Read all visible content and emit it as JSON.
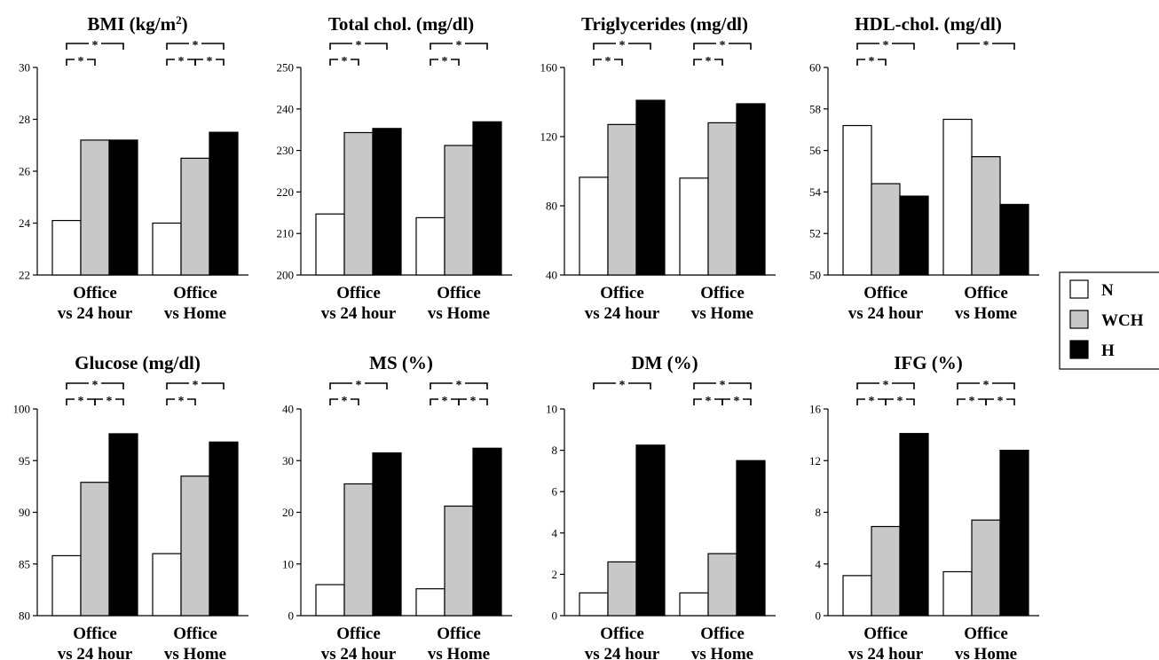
{
  "legend": {
    "position": "right",
    "items": [
      {
        "label": "N",
        "color": "#ffffff"
      },
      {
        "label": "WCH",
        "color": "#c8c8c8"
      },
      {
        "label": "H",
        "color": "#000000"
      }
    ]
  },
  "chart_data": [
    {
      "type": "bar",
      "title": "BMI (kg/m²)",
      "title_html": "BMI (kg/m<tspan baseline-shift='super' font-size='13'>2</tspan>)",
      "ylim": [
        22,
        30
      ],
      "yticks": [
        22,
        24,
        26,
        28,
        30
      ],
      "groups": [
        {
          "label": [
            "Office",
            "vs 24 hour"
          ],
          "values": [
            24.1,
            27.2,
            27.2
          ]
        },
        {
          "label": [
            "Office",
            "vs Home"
          ],
          "values": [
            24.0,
            26.5,
            27.5
          ]
        }
      ],
      "significance": [
        {
          "group": 0,
          "from": 0,
          "to": 2,
          "level": 2
        },
        {
          "group": 0,
          "from": 0,
          "to": 1,
          "level": 1
        },
        {
          "group": 1,
          "from": 0,
          "to": 2,
          "level": 2
        },
        {
          "group": 1,
          "from": 0,
          "to": 1,
          "level": 1
        },
        {
          "group": 1,
          "from": 1,
          "to": 2,
          "level": 1
        }
      ]
    },
    {
      "type": "bar",
      "title": "Total chol. (mg/dl)",
      "ylim": [
        200,
        250
      ],
      "yticks": [
        200,
        210,
        220,
        230,
        240,
        250
      ],
      "groups": [
        {
          "label": [
            "Office",
            "vs 24 hour"
          ],
          "values": [
            214.7,
            234.3,
            235.3
          ]
        },
        {
          "label": [
            "Office",
            "vs Home"
          ],
          "values": [
            213.8,
            231.2,
            236.9
          ]
        }
      ],
      "significance": [
        {
          "group": 0,
          "from": 0,
          "to": 2,
          "level": 2
        },
        {
          "group": 0,
          "from": 0,
          "to": 1,
          "level": 1
        },
        {
          "group": 1,
          "from": 0,
          "to": 2,
          "level": 2
        },
        {
          "group": 1,
          "from": 0,
          "to": 1,
          "level": 1
        }
      ]
    },
    {
      "type": "bar",
      "title": "Triglycerides (mg/dl)",
      "ylim": [
        40,
        160
      ],
      "yticks": [
        40,
        80,
        120,
        160
      ],
      "groups": [
        {
          "label": [
            "Office",
            "vs 24 hour"
          ],
          "values": [
            96.5,
            127.0,
            141.0
          ]
        },
        {
          "label": [
            "Office",
            "vs Home"
          ],
          "values": [
            96.0,
            128.0,
            139.0
          ]
        }
      ],
      "significance": [
        {
          "group": 0,
          "from": 0,
          "to": 2,
          "level": 2
        },
        {
          "group": 0,
          "from": 0,
          "to": 1,
          "level": 1
        },
        {
          "group": 1,
          "from": 0,
          "to": 2,
          "level": 2
        },
        {
          "group": 1,
          "from": 0,
          "to": 1,
          "level": 1
        }
      ]
    },
    {
      "type": "bar",
      "title": "HDL-chol. (mg/dl)",
      "ylim": [
        50,
        60
      ],
      "yticks": [
        50,
        52,
        54,
        56,
        58,
        60
      ],
      "groups": [
        {
          "label": [
            "Office",
            "vs 24 hour"
          ],
          "values": [
            57.2,
            54.4,
            53.8
          ]
        },
        {
          "label": [
            "Office",
            "vs Home"
          ],
          "values": [
            57.5,
            55.7,
            53.4
          ]
        }
      ],
      "significance": [
        {
          "group": 0,
          "from": 0,
          "to": 2,
          "level": 2
        },
        {
          "group": 0,
          "from": 0,
          "to": 1,
          "level": 1
        },
        {
          "group": 1,
          "from": 0,
          "to": 2,
          "level": 2
        }
      ]
    },
    {
      "type": "bar",
      "title": "Glucose (mg/dl)",
      "ylim": [
        80,
        100
      ],
      "yticks": [
        80,
        85,
        90,
        95,
        100
      ],
      "groups": [
        {
          "label": [
            "Office",
            "vs 24 hour"
          ],
          "values": [
            85.8,
            92.9,
            97.6
          ]
        },
        {
          "label": [
            "Office",
            "vs Home"
          ],
          "values": [
            86.0,
            93.5,
            96.8
          ]
        }
      ],
      "significance": [
        {
          "group": 0,
          "from": 0,
          "to": 2,
          "level": 2
        },
        {
          "group": 0,
          "from": 0,
          "to": 1,
          "level": 1
        },
        {
          "group": 0,
          "from": 1,
          "to": 2,
          "level": 1
        },
        {
          "group": 1,
          "from": 0,
          "to": 2,
          "level": 2
        },
        {
          "group": 1,
          "from": 0,
          "to": 1,
          "level": 1
        }
      ]
    },
    {
      "type": "bar",
      "title": "MS (%)",
      "ylim": [
        0,
        40
      ],
      "yticks": [
        0,
        10,
        20,
        30,
        40
      ],
      "groups": [
        {
          "label": [
            "Office",
            "vs 24 hour"
          ],
          "values": [
            6.0,
            25.5,
            31.5
          ]
        },
        {
          "label": [
            "Office",
            "vs Home"
          ],
          "values": [
            5.2,
            21.2,
            32.4
          ]
        }
      ],
      "significance": [
        {
          "group": 0,
          "from": 0,
          "to": 2,
          "level": 2
        },
        {
          "group": 0,
          "from": 0,
          "to": 1,
          "level": 1
        },
        {
          "group": 1,
          "from": 0,
          "to": 2,
          "level": 2
        },
        {
          "group": 1,
          "from": 0,
          "to": 1,
          "level": 1
        },
        {
          "group": 1,
          "from": 1,
          "to": 2,
          "level": 1
        }
      ]
    },
    {
      "type": "bar",
      "title": "DM (%)",
      "ylim": [
        0,
        10
      ],
      "yticks": [
        0,
        2,
        4,
        6,
        8,
        10
      ],
      "groups": [
        {
          "label": [
            "Office",
            "vs 24 hour"
          ],
          "values": [
            1.1,
            2.6,
            8.25
          ]
        },
        {
          "label": [
            "Office",
            "vs Home"
          ],
          "values": [
            1.1,
            3.0,
            7.5
          ]
        }
      ],
      "significance": [
        {
          "group": 0,
          "from": 0,
          "to": 2,
          "level": 2
        },
        {
          "group": 1,
          "from": 0,
          "to": 2,
          "level": 2
        },
        {
          "group": 1,
          "from": 0,
          "to": 1,
          "level": 1
        },
        {
          "group": 1,
          "from": 1,
          "to": 2,
          "level": 1
        }
      ]
    },
    {
      "type": "bar",
      "title": "IFG (%)",
      "ylim": [
        0,
        16
      ],
      "yticks": [
        0,
        4,
        8,
        12,
        16
      ],
      "groups": [
        {
          "label": [
            "Office",
            "vs 24 hour"
          ],
          "values": [
            3.1,
            6.9,
            14.1
          ]
        },
        {
          "label": [
            "Office",
            "vs Home"
          ],
          "values": [
            3.4,
            7.4,
            12.8
          ]
        }
      ],
      "significance": [
        {
          "group": 0,
          "from": 0,
          "to": 2,
          "level": 2
        },
        {
          "group": 0,
          "from": 0,
          "to": 1,
          "level": 1
        },
        {
          "group": 0,
          "from": 1,
          "to": 2,
          "level": 1
        },
        {
          "group": 1,
          "from": 0,
          "to": 2,
          "level": 2
        },
        {
          "group": 1,
          "from": 0,
          "to": 1,
          "level": 1
        },
        {
          "group": 1,
          "from": 1,
          "to": 2,
          "level": 1
        }
      ]
    }
  ]
}
